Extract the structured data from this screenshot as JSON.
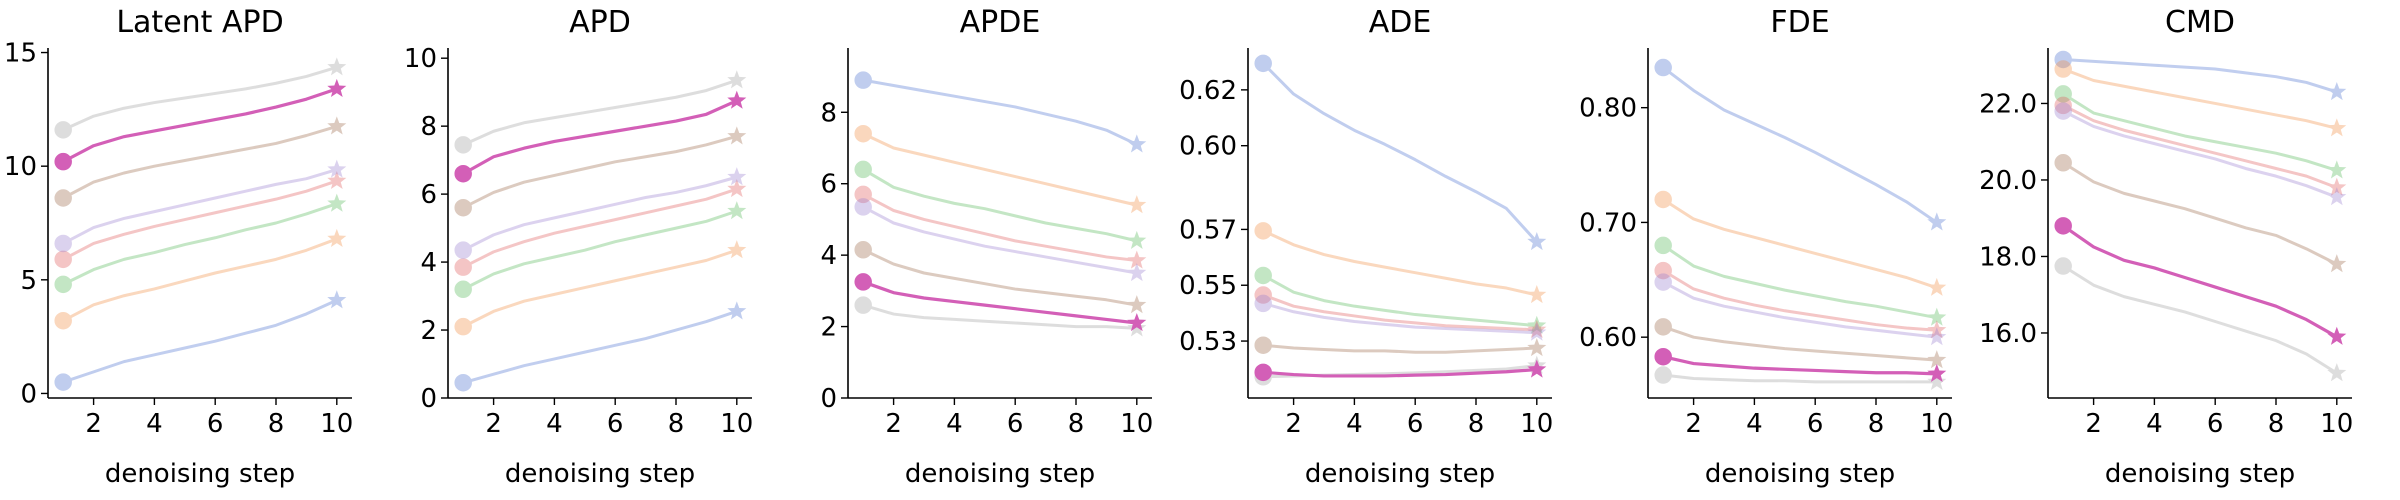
{
  "figure": {
    "width": 2400,
    "height": 500
  },
  "chart_data": [
    {
      "type": "line",
      "title": "Latent APD",
      "xlabel": "denoising step",
      "ylabel": "",
      "x": [
        1,
        2,
        3,
        4,
        5,
        6,
        7,
        8,
        9,
        10
      ],
      "xticks": [
        2,
        4,
        6,
        8,
        10
      ],
      "xlim": [
        0.5,
        10.5
      ],
      "ylim": [
        -0.2,
        15.2
      ],
      "yticks": [
        0,
        5,
        10,
        15
      ],
      "yticklabels": [
        "0",
        "5",
        "10",
        "15"
      ],
      "highlight": 6,
      "series": [
        {
          "color": "#4c72d0",
          "values": [
            0.5,
            0.95,
            1.4,
            1.7,
            2.0,
            2.3,
            2.65,
            3.0,
            3.5,
            4.1
          ]
        },
        {
          "color": "#f28e45",
          "values": [
            3.2,
            3.9,
            4.3,
            4.6,
            4.95,
            5.3,
            5.6,
            5.9,
            6.3,
            6.8
          ]
        },
        {
          "color": "#55b85a",
          "values": [
            4.8,
            5.45,
            5.9,
            6.2,
            6.55,
            6.85,
            7.2,
            7.5,
            7.9,
            8.35
          ]
        },
        {
          "color": "#e05c5c",
          "values": [
            5.9,
            6.6,
            7.0,
            7.35,
            7.65,
            7.95,
            8.25,
            8.55,
            8.9,
            9.35
          ]
        },
        {
          "color": "#9b7fd0",
          "values": [
            6.6,
            7.3,
            7.7,
            8.0,
            8.3,
            8.6,
            8.9,
            9.2,
            9.45,
            9.85
          ]
        },
        {
          "color": "#9c6a4a",
          "values": [
            8.6,
            9.3,
            9.7,
            10.0,
            10.25,
            10.5,
            10.75,
            11.0,
            11.35,
            11.75
          ]
        },
        {
          "color": "#d35fb7",
          "values": [
            10.2,
            10.9,
            11.3,
            11.55,
            11.8,
            12.05,
            12.3,
            12.6,
            12.95,
            13.4
          ]
        },
        {
          "color": "#a0a0a0",
          "values": [
            11.6,
            12.2,
            12.55,
            12.8,
            13.0,
            13.2,
            13.4,
            13.65,
            13.95,
            14.35
          ]
        }
      ]
    },
    {
      "type": "line",
      "title": "APD",
      "xlabel": "denoising step",
      "ylabel": "",
      "x": [
        1,
        2,
        3,
        4,
        5,
        6,
        7,
        8,
        9,
        10
      ],
      "xticks": [
        2,
        4,
        6,
        8,
        10
      ],
      "xlim": [
        0.5,
        10.5
      ],
      "ylim": [
        0,
        10.3
      ],
      "yticks": [
        0,
        2,
        4,
        6,
        8,
        10
      ],
      "yticklabels": [
        "0",
        "2",
        "4",
        "6",
        "8",
        "10"
      ],
      "highlight": 6,
      "series": [
        {
          "color": "#4c72d0",
          "values": [
            0.45,
            0.7,
            0.95,
            1.15,
            1.35,
            1.55,
            1.75,
            2.0,
            2.25,
            2.55
          ]
        },
        {
          "color": "#f28e45",
          "values": [
            2.1,
            2.55,
            2.85,
            3.05,
            3.25,
            3.45,
            3.65,
            3.85,
            4.05,
            4.35
          ]
        },
        {
          "color": "#55b85a",
          "values": [
            3.2,
            3.65,
            3.95,
            4.15,
            4.35,
            4.6,
            4.8,
            5.0,
            5.2,
            5.5
          ]
        },
        {
          "color": "#e05c5c",
          "values": [
            3.85,
            4.3,
            4.6,
            4.85,
            5.05,
            5.25,
            5.45,
            5.65,
            5.85,
            6.15
          ]
        },
        {
          "color": "#9b7fd0",
          "values": [
            4.35,
            4.8,
            5.1,
            5.3,
            5.5,
            5.7,
            5.9,
            6.05,
            6.25,
            6.5
          ]
        },
        {
          "color": "#9c6a4a",
          "values": [
            5.6,
            6.05,
            6.35,
            6.55,
            6.75,
            6.95,
            7.1,
            7.25,
            7.45,
            7.7
          ]
        },
        {
          "color": "#d35fb7",
          "values": [
            6.6,
            7.1,
            7.35,
            7.55,
            7.7,
            7.85,
            8.0,
            8.15,
            8.35,
            8.75
          ]
        },
        {
          "color": "#a0a0a0",
          "values": [
            7.45,
            7.85,
            8.1,
            8.25,
            8.4,
            8.55,
            8.7,
            8.85,
            9.05,
            9.35
          ]
        }
      ]
    },
    {
      "type": "line",
      "title": "APDE",
      "xlabel": "denoising step",
      "ylabel": "",
      "x": [
        1,
        2,
        3,
        4,
        5,
        6,
        7,
        8,
        9,
        10
      ],
      "xticks": [
        2,
        4,
        6,
        8,
        10
      ],
      "xlim": [
        0.5,
        10.5
      ],
      "ylim": [
        0,
        9.8
      ],
      "yticks": [
        0,
        2,
        4,
        6,
        8
      ],
      "yticklabels": [
        "0",
        "2",
        "4",
        "6",
        "8"
      ],
      "highlight": 6,
      "series": [
        {
          "color": "#4c72d0",
          "values": [
            8.9,
            8.75,
            8.6,
            8.45,
            8.3,
            8.15,
            7.95,
            7.75,
            7.5,
            7.1
          ]
        },
        {
          "color": "#f28e45",
          "values": [
            7.4,
            7.0,
            6.8,
            6.6,
            6.4,
            6.2,
            6.0,
            5.8,
            5.6,
            5.4
          ]
        },
        {
          "color": "#55b85a",
          "values": [
            6.4,
            5.9,
            5.65,
            5.45,
            5.3,
            5.1,
            4.9,
            4.75,
            4.6,
            4.4
          ]
        },
        {
          "color": "#e05c5c",
          "values": [
            5.7,
            5.25,
            5.0,
            4.8,
            4.6,
            4.4,
            4.25,
            4.1,
            3.95,
            3.85
          ]
        },
        {
          "color": "#9b7fd0",
          "values": [
            5.35,
            4.9,
            4.65,
            4.45,
            4.25,
            4.1,
            3.95,
            3.8,
            3.65,
            3.5
          ]
        },
        {
          "color": "#9c6a4a",
          "values": [
            4.15,
            3.75,
            3.5,
            3.35,
            3.2,
            3.05,
            2.95,
            2.85,
            2.75,
            2.6
          ]
        },
        {
          "color": "#d35fb7",
          "values": [
            3.25,
            2.95,
            2.8,
            2.7,
            2.6,
            2.5,
            2.4,
            2.3,
            2.2,
            2.1
          ]
        },
        {
          "color": "#a0a0a0",
          "values": [
            2.6,
            2.35,
            2.25,
            2.2,
            2.15,
            2.1,
            2.05,
            2.0,
            2.0,
            1.95
          ]
        }
      ]
    },
    {
      "type": "line",
      "title": "ADE",
      "xlabel": "denoising step",
      "ylabel": "",
      "x": [
        1,
        2,
        3,
        4,
        5,
        6,
        7,
        8,
        9,
        10
      ],
      "xticks": [
        2,
        4,
        6,
        8,
        10
      ],
      "xlim": [
        0.5,
        10.5
      ],
      "ylim": [
        0.5096,
        0.635
      ],
      "yticks": [
        0.53,
        0.55,
        0.57,
        0.6,
        0.62
      ],
      "yticklabels": [
        "0.53",
        "0.55",
        "0.57",
        "0.60",
        "0.62"
      ],
      "highlight": 6,
      "series": [
        {
          "color": "#4c72d0",
          "values": [
            0.6295,
            0.6185,
            0.6115,
            0.6055,
            0.6005,
            0.595,
            0.589,
            0.5835,
            0.5775,
            0.5655
          ]
        },
        {
          "color": "#f28e45",
          "values": [
            0.5695,
            0.5645,
            0.561,
            0.5585,
            0.5565,
            0.5545,
            0.5525,
            0.5505,
            0.549,
            0.5465
          ]
        },
        {
          "color": "#55b85a",
          "values": [
            0.5535,
            0.5475,
            0.5445,
            0.5425,
            0.541,
            0.5395,
            0.5385,
            0.5375,
            0.5365,
            0.5355
          ]
        },
        {
          "color": "#e05c5c",
          "values": [
            0.5465,
            0.5425,
            0.5405,
            0.539,
            0.5375,
            0.5365,
            0.5355,
            0.535,
            0.5345,
            0.534
          ]
        },
        {
          "color": "#9b7fd0",
          "values": [
            0.5435,
            0.5405,
            0.5385,
            0.537,
            0.536,
            0.535,
            0.5345,
            0.534,
            0.5335,
            0.533
          ]
        },
        {
          "color": "#9c6a4a",
          "values": [
            0.5285,
            0.5275,
            0.527,
            0.5265,
            0.5265,
            0.526,
            0.526,
            0.5265,
            0.527,
            0.5275
          ]
        },
        {
          "color": "#d35fb7",
          "values": [
            0.5188,
            0.518,
            0.5175,
            0.5175,
            0.5175,
            0.5178,
            0.518,
            0.5185,
            0.519,
            0.5198
          ]
        },
        {
          "color": "#a0a0a0",
          "values": [
            0.5172,
            0.5175,
            0.5178,
            0.518,
            0.5183,
            0.5186,
            0.519,
            0.5195,
            0.52,
            0.5212
          ]
        }
      ]
    },
    {
      "type": "line",
      "title": "FDE",
      "xlabel": "denoising step",
      "ylabel": "",
      "x": [
        1,
        2,
        3,
        4,
        5,
        6,
        7,
        8,
        9,
        10
      ],
      "xticks": [
        2,
        4,
        6,
        8,
        10
      ],
      "xlim": [
        0.5,
        10.5
      ],
      "ylim": [
        0.547,
        0.852
      ],
      "yticks": [
        0.6,
        0.7,
        0.8
      ],
      "yticklabels": [
        "0.60",
        "0.70",
        "0.80"
      ],
      "highlight": 6,
      "series": [
        {
          "color": "#4c72d0",
          "values": [
            0.835,
            0.815,
            0.798,
            0.786,
            0.774,
            0.761,
            0.747,
            0.733,
            0.718,
            0.7
          ]
        },
        {
          "color": "#f28e45",
          "values": [
            0.72,
            0.703,
            0.694,
            0.687,
            0.68,
            0.673,
            0.666,
            0.659,
            0.652,
            0.643
          ]
        },
        {
          "color": "#55b85a",
          "values": [
            0.68,
            0.662,
            0.653,
            0.647,
            0.641,
            0.636,
            0.631,
            0.627,
            0.622,
            0.617
          ]
        },
        {
          "color": "#e05c5c",
          "values": [
            0.658,
            0.642,
            0.634,
            0.628,
            0.623,
            0.619,
            0.615,
            0.611,
            0.608,
            0.606
          ]
        },
        {
          "color": "#9b7fd0",
          "values": [
            0.648,
            0.634,
            0.627,
            0.622,
            0.617,
            0.613,
            0.609,
            0.606,
            0.603,
            0.6
          ]
        },
        {
          "color": "#9c6a4a",
          "values": [
            0.609,
            0.6,
            0.596,
            0.593,
            0.59,
            0.588,
            0.586,
            0.584,
            0.582,
            0.58
          ]
        },
        {
          "color": "#d35fb7",
          "values": [
            0.583,
            0.577,
            0.575,
            0.573,
            0.572,
            0.571,
            0.57,
            0.569,
            0.569,
            0.568
          ]
        },
        {
          "color": "#a0a0a0",
          "values": [
            0.567,
            0.564,
            0.563,
            0.562,
            0.562,
            0.561,
            0.561,
            0.561,
            0.561,
            0.561
          ]
        }
      ]
    },
    {
      "type": "line",
      "title": "CMD",
      "xlabel": "denoising step",
      "ylabel": "",
      "x": [
        1,
        2,
        3,
        4,
        5,
        6,
        7,
        8,
        9,
        10
      ],
      "xticks": [
        2,
        4,
        6,
        8,
        10
      ],
      "xlim": [
        0.5,
        10.5
      ],
      "ylim": [
        14.3,
        23.45
      ],
      "yticks": [
        16.0,
        18.0,
        20.0,
        22.0
      ],
      "yticklabels": [
        "16.0",
        "18.0",
        "20.0",
        "22.0"
      ],
      "highlight": 6,
      "series": [
        {
          "color": "#4c72d0",
          "values": [
            23.15,
            23.1,
            23.05,
            23.0,
            22.95,
            22.9,
            22.8,
            22.7,
            22.55,
            22.3
          ]
        },
        {
          "color": "#f28e45",
          "values": [
            22.9,
            22.6,
            22.45,
            22.3,
            22.15,
            22.0,
            21.85,
            21.7,
            21.55,
            21.35
          ]
        },
        {
          "color": "#55b85a",
          "values": [
            22.25,
            21.75,
            21.55,
            21.35,
            21.15,
            21.0,
            20.85,
            20.7,
            20.5,
            20.25
          ]
        },
        {
          "color": "#e05c5c",
          "values": [
            21.95,
            21.55,
            21.3,
            21.1,
            20.9,
            20.7,
            20.5,
            20.3,
            20.1,
            19.8
          ]
        },
        {
          "color": "#9b7fd0",
          "values": [
            21.8,
            21.4,
            21.15,
            20.95,
            20.75,
            20.55,
            20.3,
            20.1,
            19.85,
            19.55
          ]
        },
        {
          "color": "#9c6a4a",
          "values": [
            20.45,
            19.95,
            19.65,
            19.45,
            19.25,
            19.0,
            18.75,
            18.55,
            18.2,
            17.8
          ]
        },
        {
          "color": "#d35fb7",
          "values": [
            18.8,
            18.25,
            17.9,
            17.7,
            17.45,
            17.2,
            16.95,
            16.7,
            16.35,
            15.9
          ]
        },
        {
          "color": "#a0a0a0",
          "values": [
            17.75,
            17.25,
            16.95,
            16.75,
            16.55,
            16.3,
            16.05,
            15.8,
            15.45,
            14.95
          ]
        }
      ]
    }
  ]
}
